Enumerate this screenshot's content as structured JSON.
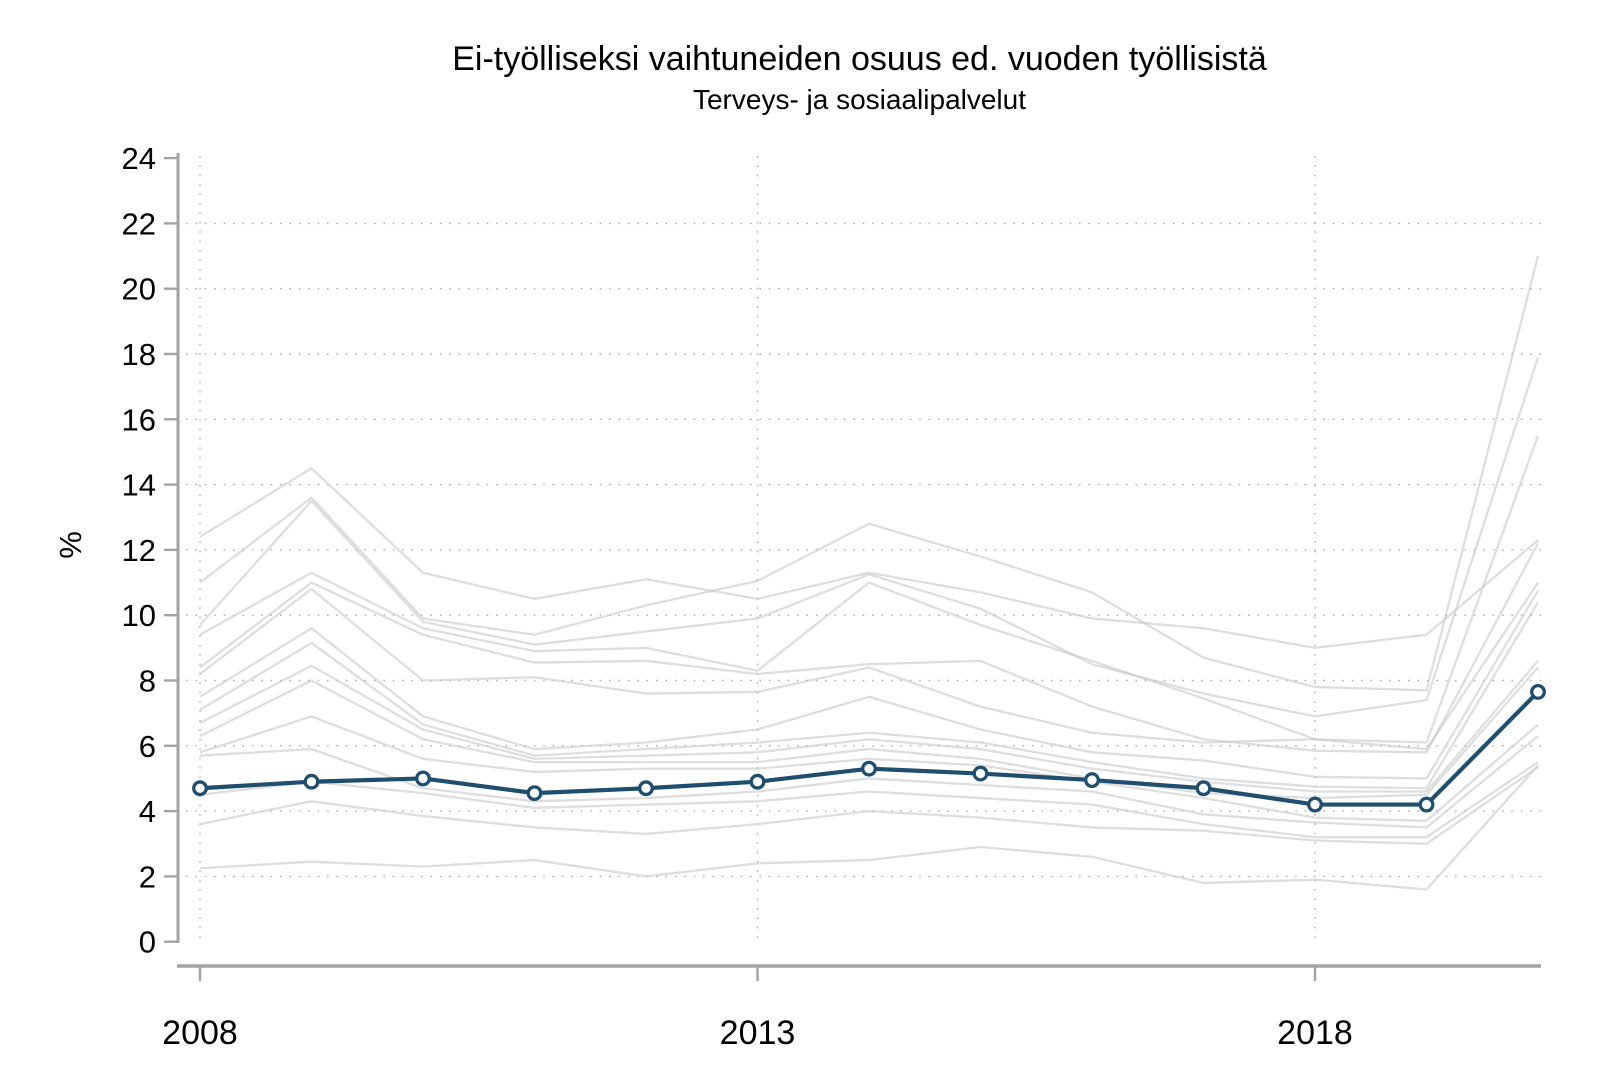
{
  "chart_data": {
    "type": "line",
    "title": "Ei-työlliseksi vaihtuneiden osuus ed. vuoden työllisistä",
    "subtitle": "Terveys- ja sosiaalipalvelut",
    "ylabel": "%",
    "xlabel": "",
    "x": [
      2008,
      2009,
      2010,
      2011,
      2012,
      2013,
      2014,
      2015,
      2016,
      2017,
      2018,
      2019,
      2020
    ],
    "x_ticks": [
      {
        "year": 2008,
        "label": "2008"
      },
      {
        "year": 2013,
        "label": "2013"
      },
      {
        "year": 2018,
        "label": "2018"
      }
    ],
    "y_ticks": [
      0,
      2,
      4,
      6,
      8,
      10,
      12,
      14,
      16,
      18,
      20,
      22,
      24
    ],
    "ylim": [
      0,
      24
    ],
    "grid": "dotted horizontal lines at every y tick 2-22, dotted vertical lines at labeled years",
    "legend": "none",
    "colors": {
      "main_line": "#1f4e6e",
      "marker_fill": "#ffffff",
      "background_lines": "#c8c8c8",
      "axis": "#a3a3a3",
      "grid": "#adadad"
    },
    "main_series": {
      "name": "Terveys- ja sosiaalipalvelut",
      "marker": "open-circle",
      "values": [
        4.7,
        4.9,
        5.0,
        4.55,
        4.7,
        4.9,
        5.3,
        5.15,
        4.95,
        4.7,
        4.2,
        4.2,
        7.65
      ]
    },
    "background_series": [
      {
        "name": "background-line-1",
        "values": [
          12.4,
          14.5,
          11.3,
          10.5,
          11.1,
          10.5,
          11.3,
          10.7,
          9.9,
          9.6,
          9.0,
          9.4,
          12.3
        ]
      },
      {
        "name": "background-line-2",
        "values": [
          11.0,
          13.6,
          9.9,
          9.4,
          10.3,
          11.05,
          12.8,
          11.8,
          10.7,
          8.7,
          7.8,
          7.7,
          21.0
        ]
      },
      {
        "name": "background-line-3",
        "values": [
          9.7,
          13.5,
          9.8,
          9.1,
          9.5,
          9.9,
          11.25,
          10.2,
          8.5,
          7.6,
          6.9,
          7.4,
          17.9
        ]
      },
      {
        "name": "background-line-4",
        "values": [
          9.4,
          11.3,
          9.6,
          8.9,
          9.0,
          8.3,
          11.0,
          9.7,
          8.6,
          7.45,
          6.2,
          6.1,
          15.5
        ]
      },
      {
        "name": "background-line-5",
        "values": [
          8.4,
          11.0,
          9.4,
          8.55,
          8.6,
          8.2,
          8.5,
          8.6,
          7.2,
          6.2,
          5.85,
          5.8,
          12.2
        ]
      },
      {
        "name": "background-line-6",
        "values": [
          8.2,
          10.8,
          8.0,
          8.1,
          7.6,
          7.65,
          8.4,
          7.2,
          6.4,
          6.1,
          6.2,
          5.9,
          11.0
        ]
      },
      {
        "name": "background-line-7",
        "values": [
          7.5,
          9.6,
          6.9,
          5.9,
          6.1,
          6.5,
          7.5,
          6.5,
          5.8,
          5.55,
          5.05,
          5.0,
          10.75
        ]
      },
      {
        "name": "background-line-8",
        "values": [
          7.1,
          9.15,
          6.65,
          5.7,
          5.9,
          6.1,
          6.4,
          6.1,
          5.5,
          5.0,
          4.75,
          4.7,
          10.4
        ]
      },
      {
        "name": "background-line-9",
        "values": [
          6.7,
          8.45,
          6.5,
          5.6,
          5.7,
          5.8,
          6.2,
          5.9,
          5.3,
          4.9,
          4.6,
          4.6,
          8.6
        ]
      },
      {
        "name": "background-line-10",
        "values": [
          6.3,
          8.0,
          6.2,
          5.5,
          5.5,
          5.5,
          5.9,
          5.6,
          5.0,
          4.55,
          4.4,
          4.5,
          8.4
        ]
      },
      {
        "name": "background-line-11",
        "values": [
          5.8,
          6.9,
          5.6,
          5.2,
          5.3,
          5.3,
          5.6,
          5.4,
          4.9,
          4.4,
          3.8,
          3.7,
          6.65
        ]
      },
      {
        "name": "background-line-12",
        "values": [
          5.7,
          5.9,
          4.7,
          4.3,
          4.4,
          4.6,
          5.0,
          4.8,
          4.6,
          3.9,
          3.65,
          3.5,
          6.3
        ]
      },
      {
        "name": "background-line-13",
        "values": [
          4.5,
          4.9,
          4.55,
          4.1,
          4.2,
          4.3,
          4.6,
          4.4,
          4.2,
          3.6,
          3.2,
          3.2,
          5.5
        ]
      },
      {
        "name": "background-line-14",
        "values": [
          3.6,
          4.3,
          3.85,
          3.5,
          3.3,
          3.6,
          4.0,
          3.8,
          3.5,
          3.4,
          3.1,
          3.0,
          5.35
        ]
      },
      {
        "name": "background-line-15",
        "values": [
          2.25,
          2.45,
          2.3,
          2.5,
          2.0,
          2.4,
          2.5,
          2.9,
          2.6,
          1.8,
          1.9,
          1.6,
          5.4
        ]
      }
    ]
  }
}
